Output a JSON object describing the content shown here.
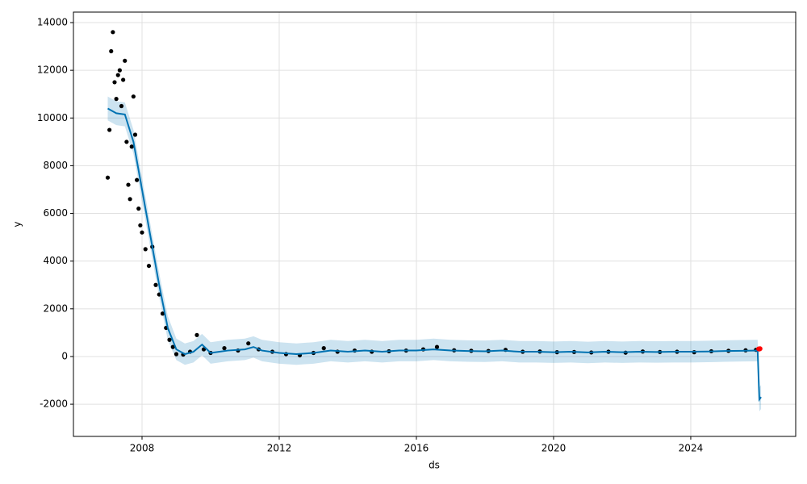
{
  "chart_data": {
    "type": "forecast",
    "x_label": "ds",
    "y_label": "y",
    "xlim": [
      2006.0,
      2027.06
    ],
    "ylim": [
      -3350,
      14440
    ],
    "xticks": [
      2008,
      2012,
      2016,
      2020,
      2024
    ],
    "yticks": [
      -2000,
      0,
      2000,
      4000,
      6000,
      8000,
      10000,
      12000,
      14000
    ],
    "grid": true,
    "observed": {
      "color": "#000000",
      "x": [
        2007.0,
        2007.05,
        2007.1,
        2007.15,
        2007.2,
        2007.25,
        2007.3,
        2007.35,
        2007.4,
        2007.45,
        2007.5,
        2007.55,
        2007.6,
        2007.65,
        2007.7,
        2007.75,
        2007.8,
        2007.85,
        2007.9,
        2007.95,
        2008.0,
        2008.1,
        2008.2,
        2008.3,
        2008.4,
        2008.5,
        2008.6,
        2008.7,
        2008.8,
        2008.9,
        2009.0,
        2009.2,
        2009.4,
        2009.6,
        2009.8,
        2010.0,
        2010.4,
        2010.8,
        2011.1,
        2011.4,
        2011.8,
        2012.2,
        2012.6,
        2013.0,
        2013.3,
        2013.7,
        2014.2,
        2014.7,
        2015.2,
        2015.7,
        2016.2,
        2016.6,
        2017.1,
        2017.6,
        2018.1,
        2018.6,
        2019.1,
        2019.6,
        2020.1,
        2020.6,
        2021.1,
        2021.6,
        2022.1,
        2022.6,
        2023.1,
        2023.6,
        2024.1,
        2024.6,
        2025.1,
        2025.6,
        2025.9
      ],
      "values": [
        7500,
        9500,
        12800,
        13600,
        11500,
        10800,
        11800,
        12000,
        10500,
        11600,
        12400,
        9000,
        7200,
        6600,
        8800,
        10900,
        9300,
        7400,
        6200,
        5500,
        5200,
        4500,
        3800,
        4600,
        3000,
        2600,
        1800,
        1200,
        700,
        400,
        100,
        80,
        200,
        900,
        300,
        150,
        350,
        250,
        550,
        300,
        200,
        100,
        50,
        150,
        350,
        200,
        250,
        200,
        220,
        250,
        300,
        400,
        260,
        240,
        230,
        280,
        200,
        210,
        180,
        190,
        170,
        200,
        160,
        210,
        190,
        200,
        180,
        220,
        240,
        260,
        280
      ]
    },
    "forecast": {
      "color": "#0072B2",
      "band_color": "#0072B2",
      "x": [
        2007.0,
        2007.25,
        2007.5,
        2007.75,
        2008.0,
        2008.25,
        2008.5,
        2008.75,
        2009.0,
        2009.25,
        2009.5,
        2009.75,
        2010.0,
        2010.5,
        2011.0,
        2011.25,
        2011.5,
        2012.0,
        2012.5,
        2013.0,
        2013.5,
        2014.0,
        2014.5,
        2015.0,
        2015.5,
        2016.0,
        2016.5,
        2017.0,
        2017.5,
        2018.0,
        2018.5,
        2019.0,
        2019.5,
        2020.0,
        2020.5,
        2021.0,
        2021.5,
        2022.0,
        2022.5,
        2023.0,
        2023.5,
        2024.0,
        2024.5,
        2025.0,
        2025.5,
        2025.95,
        2026.0,
        2026.05
      ],
      "values": [
        10400,
        10200,
        10150,
        9000,
        7000,
        5000,
        3000,
        1200,
        300,
        100,
        200,
        500,
        150,
        250,
        300,
        400,
        250,
        150,
        100,
        150,
        250,
        200,
        250,
        200,
        250,
        250,
        300,
        250,
        230,
        220,
        250,
        200,
        200,
        180,
        200,
        170,
        200,
        180,
        200,
        190,
        200,
        200,
        210,
        230,
        240,
        250,
        -1800,
        -1700
      ],
      "lower": [
        9900,
        9700,
        9650,
        8500,
        6500,
        4500,
        2500,
        700,
        -150,
        -350,
        -250,
        50,
        -300,
        -200,
        -150,
        -50,
        -200,
        -300,
        -350,
        -300,
        -200,
        -250,
        -200,
        -250,
        -200,
        -200,
        -150,
        -200,
        -220,
        -230,
        -200,
        -250,
        -250,
        -270,
        -250,
        -280,
        -250,
        -270,
        -250,
        -260,
        -250,
        -250,
        -240,
        -220,
        -210,
        -200,
        -2300,
        -2200
      ],
      "upper": [
        10900,
        10700,
        10650,
        9500,
        7500,
        5500,
        3500,
        1700,
        750,
        550,
        650,
        950,
        600,
        700,
        750,
        850,
        700,
        600,
        550,
        600,
        700,
        650,
        700,
        650,
        700,
        700,
        750,
        700,
        680,
        670,
        700,
        650,
        650,
        630,
        650,
        620,
        650,
        630,
        650,
        640,
        650,
        650,
        660,
        680,
        690,
        700,
        -1300,
        -1200
      ]
    },
    "highlight": {
      "color": "#ff0000",
      "x": [
        2025.98,
        2026.0,
        2026.02
      ],
      "values": [
        320,
        310,
        330
      ]
    }
  }
}
